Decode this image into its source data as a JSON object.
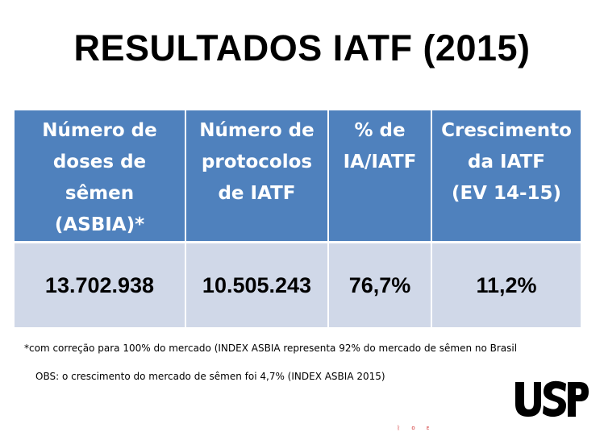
{
  "slide": {
    "title": "RESULTADOS IATF (2015)"
  },
  "table": {
    "headers": [
      [
        "Número de",
        "doses de",
        "sêmen",
        "(ASBIA)*"
      ],
      [
        "Número de",
        "protocolos",
        "de IATF"
      ],
      [
        "% de",
        "IA/IATF"
      ],
      [
        "Crescimento",
        "da IATF",
        "(EV 14-15)"
      ]
    ],
    "values": [
      "13.702.938",
      "10.505.243",
      "76,7%",
      "11,2%"
    ]
  },
  "notes": {
    "footnote": "*com correção para 100% do mercado (INDEX ASBIA representa 92% do mercado de sêmen no Brasil",
    "obs": "OBS: o crescimento do mercado de sêmen foi 4,7% (INDEX ASBIA 2015)"
  },
  "logo": {
    "text": "USP",
    "color": "#000000"
  },
  "colors": {
    "header_fill": "#4f81bd",
    "body_fill": "#d0d8e8",
    "header_text": "#ffffff"
  }
}
